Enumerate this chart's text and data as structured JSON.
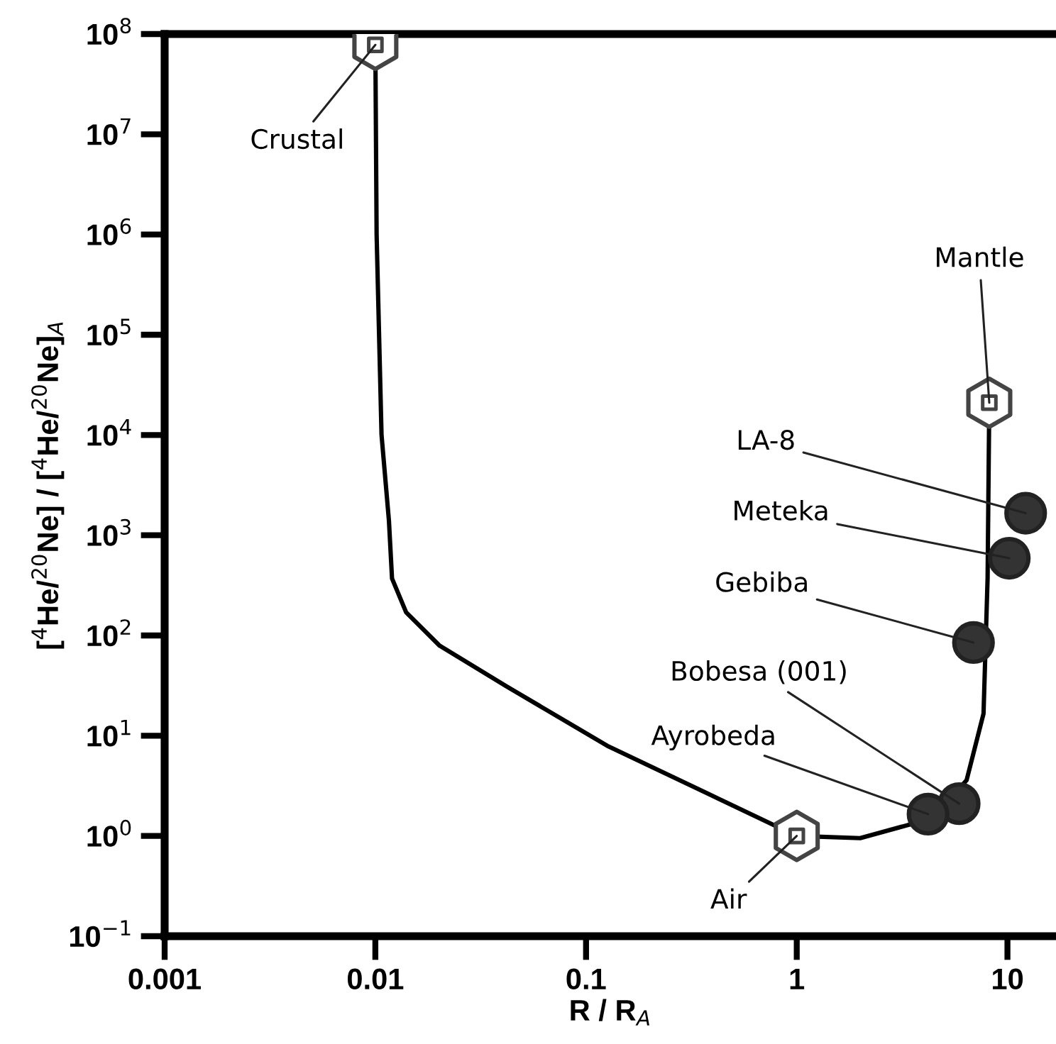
{
  "chart_data": {
    "type": "scatter",
    "xlabel": "R / R$_{A}$",
    "ylabel": "[$^{4}$He/$^{20}$Ne] / [$^{4}$He/$^{20}$Ne]$_{A}$",
    "log": "xy",
    "xlim": [
      0.001,
      17
    ],
    "ylim": [
      0.1,
      100000000
    ],
    "xticks": [
      0.001,
      0.01,
      0.1,
      1,
      10
    ],
    "yticks": [
      {
        "value": 0.1,
        "label": "10$^{−1}$"
      },
      {
        "value": 1,
        "label": "10$^{0}$"
      },
      {
        "value": 10,
        "label": "10$^{1}$"
      },
      {
        "value": 100,
        "label": "10$^{2}$"
      },
      {
        "value": 1000,
        "label": "10$^{3}$"
      },
      {
        "value": 10000,
        "label": "10$^{4}$"
      },
      {
        "value": 100000,
        "label": "10$^{5}$"
      },
      {
        "value": 1000000,
        "label": "10$^{6}$"
      },
      {
        "value": 10000000,
        "label": "10$^{7}$"
      },
      {
        "value": 100000000,
        "label": "10$^{8}$"
      }
    ],
    "grid": false,
    "series": [
      {
        "type": "line",
        "color": "#000000",
        "marker": "none",
        "line_style": "solid",
        "x": [
          0.01,
          0.01014,
          0.0107,
          0.0116,
          0.012,
          0.014,
          0.0202,
          0.042,
          0.128,
          0.385,
          1,
          2,
          4.4,
          6.4,
          7.7,
          8.05,
          8.2
        ],
        "values": [
          78000000,
          1000000,
          10000,
          1400,
          370,
          170,
          79,
          31,
          7.8,
          2.6,
          1,
          0.95,
          1.5,
          3.6,
          16.6,
          370,
          21000
        ]
      },
      {
        "color": "#ffffff",
        "marker": "square",
        "x": [
          0.01,
          8.2,
          1
        ],
        "values": [
          78000000,
          21000,
          1
        ]
      },
      {
        "color": "#333333",
        "marker": "circle",
        "x": [
          12.2,
          10.2,
          6.9,
          5.9,
          4.2
        ],
        "values": [
          1660,
          590,
          85,
          2.1,
          1.65
        ]
      }
    ],
    "annotations": [
      {
        "text": "Crustal",
        "x": 0.01,
        "y": 78000000
      },
      {
        "text": "Mantle",
        "x": 8.2,
        "y": 21000
      },
      {
        "text": "LA-8",
        "x": 12.2,
        "y": 1660
      },
      {
        "text": "Meteka",
        "x": 10.2,
        "y": 590
      },
      {
        "text": "Gebiba",
        "x": 6.9,
        "y": 85
      },
      {
        "text": "Bobesa (001)",
        "x": 5.9,
        "y": 2.1
      },
      {
        "text": "Ayrobeda",
        "x": 4.2,
        "y": 1.65
      },
      {
        "text": "Air",
        "x": 1,
        "y": 1
      }
    ]
  }
}
